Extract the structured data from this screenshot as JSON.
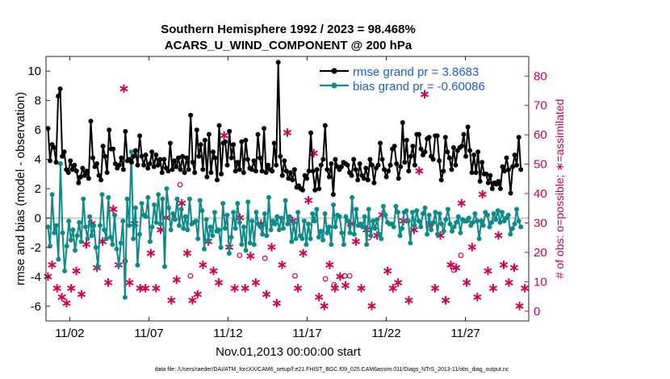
{
  "chart_data": {
    "type": "line",
    "title": "Southern Hemisphere 1992 / 2023 = 98.468%",
    "subtitle": "ACARS_U_WIND_COMPONENT @ 200 hPa",
    "xlabel": "Nov.01,2013 00:00:00 start",
    "ylabel": "rmse and bias (model - observation)",
    "y2label": "# of obs: o=possible; ∗=assimilated",
    "footer": "data file: /Users/raeder/DAI/ATM_forcXX/CAM6_setup/f.e21.FHIST_BGC.f09_025.CAM6assim.011/Diags_NTrS_2013-11/obs_diag_output.nc",
    "xlim": [
      0.5,
      31.0
    ],
    "ylim": [
      -7,
      11
    ],
    "y2lim": [
      -3.333,
      86.667
    ],
    "x_tick_labels": [
      "11/02",
      "11/07",
      "11/12",
      "11/17",
      "11/22",
      "11/27"
    ],
    "x_ticks": [
      2,
      7,
      12,
      17,
      22,
      27
    ],
    "y_ticks": [
      -6,
      -4,
      -2,
      0,
      2,
      4,
      6,
      8,
      10
    ],
    "y2_ticks": [
      0,
      10,
      20,
      30,
      40,
      50,
      60,
      70,
      80
    ],
    "colors": {
      "rmse": "#000000",
      "bias": "#0e8a88",
      "obs": "#d1004f",
      "zero": "#c8c8c8",
      "legend_text": "#1f5fd6"
    },
    "series": [
      {
        "name": "rmse grand pr = 3.8683",
        "values": [
          6.1,
          3.9,
          5.0,
          4.8,
          3.8,
          8.3,
          8.8,
          4.2,
          4.5,
          3.3,
          3.1,
          3.9,
          3.3,
          3.6,
          3.2,
          2.4,
          2.8,
          3.4,
          2.9,
          3.2,
          2.7,
          6.6,
          4.1,
          3.5,
          3.7,
          2.9,
          2.6,
          4.9,
          4.2,
          3.1,
          6.0,
          4.7,
          4.7,
          3.7,
          3.4,
          3.6,
          4.1,
          3.3,
          5.9,
          3.9,
          4.0,
          3.8,
          4.2,
          4.6,
          3.6,
          5.6,
          4.2,
          3.6,
          4.3,
          3.4,
          3.7,
          4.5,
          3.5,
          4.3,
          3.6,
          4.0,
          3.1,
          4.0,
          3.4,
          3.2,
          5.1,
          3.3,
          3.9,
          3.5,
          4.1,
          3.3,
          4.2,
          3.1,
          4.1,
          3.3,
          7.0,
          3.8,
          3.1,
          6.0,
          4.2,
          5.0,
          3.3,
          5.3,
          2.8,
          5.7,
          3.1,
          4.5,
          4.1,
          2.6,
          6.3,
          3.0,
          5.1,
          5.2,
          3.6,
          5.9,
          4.1,
          5.0,
          3.2,
          3.8,
          3.3,
          5.2,
          3.1,
          5.3,
          4.0,
          3.4,
          3.3,
          3.9,
          3.2,
          5.7,
          4.1,
          3.2,
          6.1,
          3.1,
          3.6,
          3.3,
          3.2,
          5.1,
          3.6,
          10.6,
          4.2,
          2.9,
          3.9,
          3.2,
          2.7,
          3.1,
          2.6,
          3.3,
          2.1,
          2.2,
          2.0,
          1.9,
          2.9,
          2.7,
          3.2,
          5.8,
          3.2,
          1.9,
          3.3,
          2.0,
          3.6,
          4.0,
          6.3,
          3.3,
          2.8,
          3.7,
          1.6,
          4.0,
          3.5,
          3.3,
          3.5,
          3.8,
          3.7,
          3.6,
          3.1,
          2.9,
          4.0,
          3.3,
          2.6,
          3.7,
          2.9,
          2.7,
          3.4,
          2.6,
          4.0,
          3.6,
          2.4,
          3.4,
          3.6,
          5.1,
          4.0,
          3.3,
          2.8,
          3.2,
          3.6,
          4.7,
          4.9,
          3.7,
          2.7,
          3.5,
          6.5,
          3.8,
          5.3,
          3.2,
          4.2,
          4.9,
          3.6,
          5.7,
          5.7,
          4.7,
          4.3,
          4.5,
          5.4,
          5.5,
          4.2,
          4.0,
          5.6,
          5.6,
          3.9,
          2.6,
          3.2,
          5.5,
          4.5,
          4.1,
          3.3,
          4.8,
          3.6,
          4.6,
          4.8,
          4.9,
          5.7,
          4.2,
          6.2,
          4.6,
          3.1,
          4.3,
          3.1,
          4.5,
          2.5,
          3.8,
          3.0,
          3.0,
          2.4,
          2.9,
          2.0,
          2.4,
          2.3,
          2.5,
          2.0,
          3.5,
          3.2,
          4.1,
          3.3,
          1.7,
          3.5,
          4.3,
          3.6,
          5.5,
          3.3
        ]
      },
      {
        "name": "bias grand pr = -0.60086",
        "values": [
          -0.6,
          -1.9,
          1.6,
          -1.0,
          -0.5,
          -2.8,
          3.7,
          -1.0,
          -3.6,
          -1.9,
          -0.2,
          -1.5,
          -0.8,
          -2.2,
          -1.2,
          -0.3,
          -1.6,
          1.3,
          -0.6,
          -1.4,
          0.1,
          -1.2,
          -0.5,
          -2.0,
          -3.3,
          -0.5,
          1.6,
          -0.8,
          -1.4,
          1.4,
          -1.3,
          -1.8,
          0.2,
          -2.1,
          -3.2,
          -1.7,
          -0.2,
          -5.4,
          1.3,
          -0.5,
          4.5,
          -1.4,
          0.7,
          -3.2,
          -1.1,
          1.0,
          0.2,
          0.1,
          1.4,
          -1.6,
          -0.6,
          0.9,
          -0.3,
          1.6,
          -0.4,
          1.3,
          -3.3,
          2.0,
          0.7,
          -0.8,
          0.3,
          -0.1,
          1.3,
          -0.5,
          0.6,
          -0.7,
          0.1,
          -0.8,
          1.3,
          -0.4,
          -0.3,
          -0.2,
          -1.4,
          1.2,
          0.5,
          -2.1,
          -0.1,
          -1.5,
          -0.6,
          -1.2,
          0.4,
          -0.9,
          -0.8,
          -2.0,
          1.0,
          -0.7,
          0.2,
          -2.4,
          -1.3,
          0.4,
          -0.7,
          1.0,
          -0.3,
          -1.8,
          -0.6,
          -2.2,
          1.1,
          -1.7,
          -0.2,
          -1.8,
          0.4,
          -0.4,
          -0.6,
          -1.1,
          0.3,
          -1.2,
          1.4,
          -0.8,
          -0.2,
          -0.4,
          0.1,
          -0.8,
          0.0,
          -0.7,
          1.2,
          -0.4,
          0.1,
          -1.6,
          -0.3,
          -1.4,
          0.4,
          -1.2,
          -1.4,
          -0.2,
          -1.8,
          -0.4,
          -1.4,
          0.3,
          -0.2,
          0.6,
          -1.3,
          -0.9,
          -1.5,
          0.3,
          -1.0,
          -0.6,
          -1.8,
          0.9,
          -0.6,
          0.2,
          0.1,
          -1.0,
          -1.8,
          0.1,
          -0.2,
          -1.0,
          1.4,
          -1.1,
          0.6,
          -0.5,
          -0.4,
          -0.6,
          0.1,
          -1.8,
          0.6,
          -1.2,
          -0.2,
          -0.7,
          -0.1,
          -1.1,
          -1.4,
          0.8,
          0.2,
          -0.3,
          -0.4,
          -0.4,
          -0.6,
          0.8,
          0.4,
          -1.2,
          -0.7,
          0.4,
          0.5,
          -0.2,
          -1.7,
          0.4,
          -0.5,
          0.5,
          -0.2,
          -0.6,
          0.3,
          0.7,
          -1.1,
          0.2,
          -0.8,
          -0.3,
          0.4,
          -1.1,
          0.3,
          -0.4,
          -0.9,
          -0.1,
          0.6,
          -0.4,
          -0.9,
          -0.6,
          -0.3,
          0.1,
          -1.0,
          -0.1,
          -0.2,
          -0.2,
          0.0,
          -0.5,
          -0.3,
          0.3,
          -0.2,
          -1.4,
          -0.2,
          -0.5,
          0.4,
          0.2,
          -0.6,
          -0.3,
          0.3,
          -0.1,
          0.5,
          -0.3,
          0.4,
          -0.2,
          0.0,
          0.2,
          -1.1,
          -0.7,
          -0.4,
          0.6,
          -0.2,
          -0.6
        ]
      }
    ],
    "obs_possible": {
      "x": [
        5.5,
        8.97,
        9.62,
        12.73,
        14.33,
        16.23,
        18.15,
        18.7,
        19.38,
        19.69,
        20.9,
        26.25,
        26.71
      ],
      "values": [
        17,
        43,
        12,
        19,
        18,
        12,
        11,
        9,
        12,
        12,
        25,
        14,
        19
      ]
    },
    "obs_assimilated": {
      "x": [
        0.62,
        0.88,
        1.2,
        1.5,
        1.8,
        2.09,
        2.42,
        2.75,
        3.05,
        3.38,
        3.72,
        4.08,
        4.43,
        4.75,
        5.08,
        5.42,
        5.78,
        6.08,
        6.45,
        6.78,
        7.12,
        7.45,
        7.75,
        8.08,
        8.42,
        8.75,
        9.08,
        9.42,
        9.75,
        10.08,
        10.42,
        10.75,
        11.08,
        11.42,
        11.75,
        12.08,
        12.42,
        12.75,
        13.08,
        13.42,
        13.75,
        14.08,
        14.42,
        14.75,
        15.08,
        15.42,
        15.75,
        16.08,
        16.42,
        16.75,
        17.08,
        17.42,
        17.75,
        18.08,
        18.42,
        18.75,
        19.08,
        19.42,
        19.75,
        20.08,
        20.42,
        20.75,
        21.08,
        21.42,
        21.75,
        22.08,
        22.42,
        22.75,
        23.08,
        23.42,
        23.75,
        24.08,
        24.42,
        24.75,
        25.08,
        25.42,
        25.75,
        26.08,
        26.42,
        26.75,
        27.08,
        27.42,
        27.75,
        28.08,
        28.42,
        28.75,
        29.08,
        29.42,
        29.75,
        30.08,
        30.42,
        30.75
      ],
      "values": [
        12,
        16,
        8,
        5,
        3,
        8,
        14,
        6,
        23,
        30,
        15,
        24,
        10,
        35,
        16,
        76,
        10,
        30,
        8,
        8,
        20,
        8,
        28,
        32,
        4,
        11,
        37,
        20,
        4,
        6,
        16,
        24,
        14,
        10,
        60,
        22,
        8,
        32,
        8,
        19,
        10,
        30,
        6,
        22,
        3,
        16,
        61,
        31,
        8,
        20,
        38,
        54,
        5,
        2,
        16,
        8,
        12,
        9,
        30,
        24,
        8,
        28,
        2,
        26,
        33,
        14,
        8,
        10,
        31,
        4,
        28,
        48,
        74,
        30,
        8,
        26,
        4,
        16,
        15,
        37,
        10,
        22,
        5,
        40,
        14,
        8,
        26,
        16,
        10,
        15,
        2,
        8
      ]
    }
  }
}
